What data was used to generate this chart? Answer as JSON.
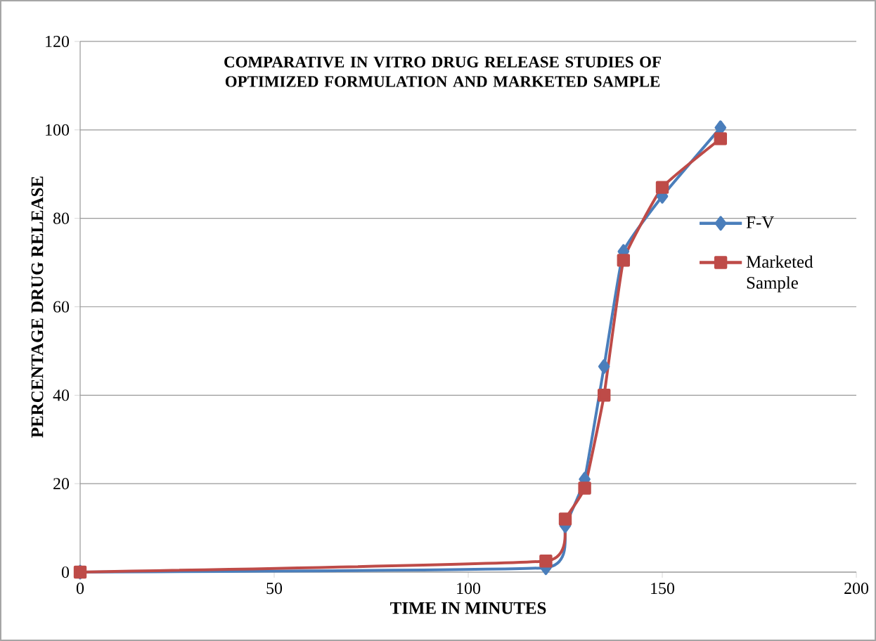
{
  "chart_data": {
    "type": "line",
    "title": "COMPARATIVE IN VITRO DRUG RELEASE STUDIES OF OPTIMIZED FORMULATION AND MARKETED SAMPLE",
    "xlabel": "TIME IN MINUTES",
    "ylabel": "PERCENTAGE DRUG RELEASE",
    "x": [
      0,
      120,
      125,
      130,
      135,
      140,
      150,
      165
    ],
    "series": [
      {
        "name": "F-V",
        "color": "#4a7ebb",
        "marker": "diamond",
        "values": [
          0,
          1,
          10.5,
          21,
          46.5,
          72.5,
          85,
          100.5
        ]
      },
      {
        "name": "Marketed Sample",
        "color": "#be4b48",
        "marker": "square",
        "values": [
          0,
          2.5,
          12,
          19,
          40,
          70.5,
          87,
          98
        ]
      }
    ],
    "xlim": [
      0,
      200
    ],
    "ylim": [
      0,
      120
    ],
    "xticks": [
      0,
      50,
      100,
      150,
      200
    ],
    "yticks": [
      0,
      20,
      40,
      60,
      80,
      100,
      120
    ],
    "grid": "y",
    "legend": "right",
    "line_style": "solid"
  }
}
